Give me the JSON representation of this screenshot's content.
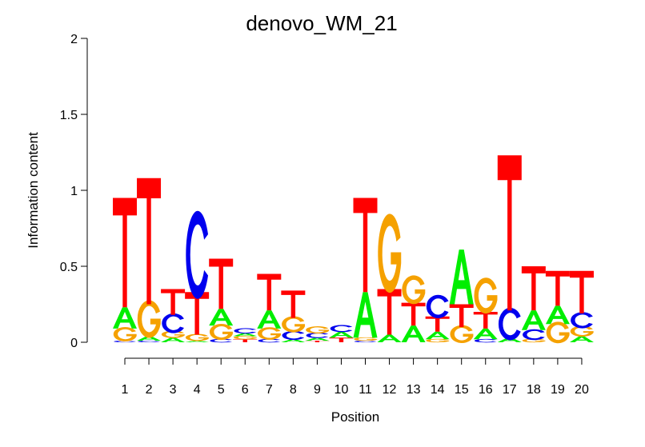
{
  "chart_data": {
    "type": "sequence-logo",
    "title": "denovo_WM_21",
    "xlabel": "Position",
    "ylabel": "Information content",
    "ylim": [
      0,
      2
    ],
    "yticks": [
      {
        "value": 0,
        "label": "0"
      },
      {
        "value": 0.5,
        "label": "0.5"
      },
      {
        "value": 1,
        "label": "1"
      },
      {
        "value": 1.5,
        "label": "1.5"
      },
      {
        "value": 2,
        "label": "2"
      }
    ],
    "positions": [
      "1",
      "2",
      "3",
      "4",
      "5",
      "6",
      "7",
      "8",
      "9",
      "10",
      "11",
      "12",
      "13",
      "14",
      "15",
      "16",
      "17",
      "18",
      "19",
      "20"
    ],
    "letter_colors": {
      "A": "#00ee00",
      "C": "#0000ee",
      "G": "#f5a100",
      "T": "#ff0000"
    },
    "stacks": [
      [
        {
          "letter": "C",
          "h": 0.01
        },
        {
          "letter": "G",
          "h": 0.08
        },
        {
          "letter": "A",
          "h": 0.14
        },
        {
          "letter": "T",
          "h": 0.72
        }
      ],
      [
        {
          "letter": "C",
          "h": 0.01
        },
        {
          "letter": "A",
          "h": 0.03
        },
        {
          "letter": "G",
          "h": 0.21
        },
        {
          "letter": "T",
          "h": 0.83
        }
      ],
      [
        {
          "letter": "A",
          "h": 0.03
        },
        {
          "letter": "G",
          "h": 0.04
        },
        {
          "letter": "C",
          "h": 0.11
        },
        {
          "letter": "T",
          "h": 0.17
        }
      ],
      [
        {
          "letter": "A",
          "h": 0.01
        },
        {
          "letter": "G",
          "h": 0.04
        },
        {
          "letter": "T",
          "h": 0.28
        },
        {
          "letter": "C",
          "h": 0.49
        }
      ],
      [
        {
          "letter": "C",
          "h": 0.02
        },
        {
          "letter": "G",
          "h": 0.09
        },
        {
          "letter": "A",
          "h": 0.11
        },
        {
          "letter": "T",
          "h": 0.33
        }
      ],
      [
        {
          "letter": "T",
          "h": 0.02
        },
        {
          "letter": "G",
          "h": 0.02
        },
        {
          "letter": "A",
          "h": 0.02
        },
        {
          "letter": "C",
          "h": 0.03
        }
      ],
      [
        {
          "letter": "C",
          "h": 0.02
        },
        {
          "letter": "G",
          "h": 0.07
        },
        {
          "letter": "A",
          "h": 0.12
        },
        {
          "letter": "T",
          "h": 0.24
        }
      ],
      [
        {
          "letter": "A",
          "h": 0.02
        },
        {
          "letter": "C",
          "h": 0.05
        },
        {
          "letter": "G",
          "h": 0.09
        },
        {
          "letter": "T",
          "h": 0.18
        }
      ],
      [
        {
          "letter": "T",
          "h": 0.01
        },
        {
          "letter": "A",
          "h": 0.02
        },
        {
          "letter": "C",
          "h": 0.03
        },
        {
          "letter": "G",
          "h": 0.04
        }
      ],
      [
        {
          "letter": "T",
          "h": 0.03
        },
        {
          "letter": "A",
          "h": 0.04
        },
        {
          "letter": "C",
          "h": 0.04
        }
      ],
      [
        {
          "letter": "C",
          "h": 0.01
        },
        {
          "letter": "G",
          "h": 0.02
        },
        {
          "letter": "A",
          "h": 0.3
        },
        {
          "letter": "T",
          "h": 0.62
        }
      ],
      [
        {
          "letter": "A",
          "h": 0.05
        },
        {
          "letter": "T",
          "h": 0.3
        },
        {
          "letter": "G",
          "h": 0.44
        }
      ],
      [
        {
          "letter": "A",
          "h": 0.11
        },
        {
          "letter": "T",
          "h": 0.15
        },
        {
          "letter": "G",
          "h": 0.16
        }
      ],
      [
        {
          "letter": "G",
          "h": 0.02
        },
        {
          "letter": "A",
          "h": 0.05
        },
        {
          "letter": "T",
          "h": 0.1
        },
        {
          "letter": "C",
          "h": 0.13
        }
      ],
      [
        {
          "letter": "G",
          "h": 0.1
        },
        {
          "letter": "T",
          "h": 0.15
        },
        {
          "letter": "A",
          "h": 0.36
        }
      ],
      [
        {
          "letter": "C",
          "h": 0.02
        },
        {
          "letter": "A",
          "h": 0.07
        },
        {
          "letter": "T",
          "h": 0.11
        },
        {
          "letter": "G",
          "h": 0.2
        }
      ],
      [
        {
          "letter": "A",
          "h": 0.03
        },
        {
          "letter": "C",
          "h": 0.18
        },
        {
          "letter": "T",
          "h": 1.02
        }
      ],
      [
        {
          "letter": "G",
          "h": 0.02
        },
        {
          "letter": "C",
          "h": 0.06
        },
        {
          "letter": "A",
          "h": 0.13
        },
        {
          "letter": "T",
          "h": 0.29
        }
      ],
      [
        {
          "letter": "G",
          "h": 0.12
        },
        {
          "letter": "A",
          "h": 0.12
        },
        {
          "letter": "T",
          "h": 0.23
        }
      ],
      [
        {
          "letter": "A",
          "h": 0.04
        },
        {
          "letter": "G",
          "h": 0.06
        },
        {
          "letter": "C",
          "h": 0.09
        },
        {
          "letter": "T",
          "h": 0.28
        }
      ]
    ]
  }
}
